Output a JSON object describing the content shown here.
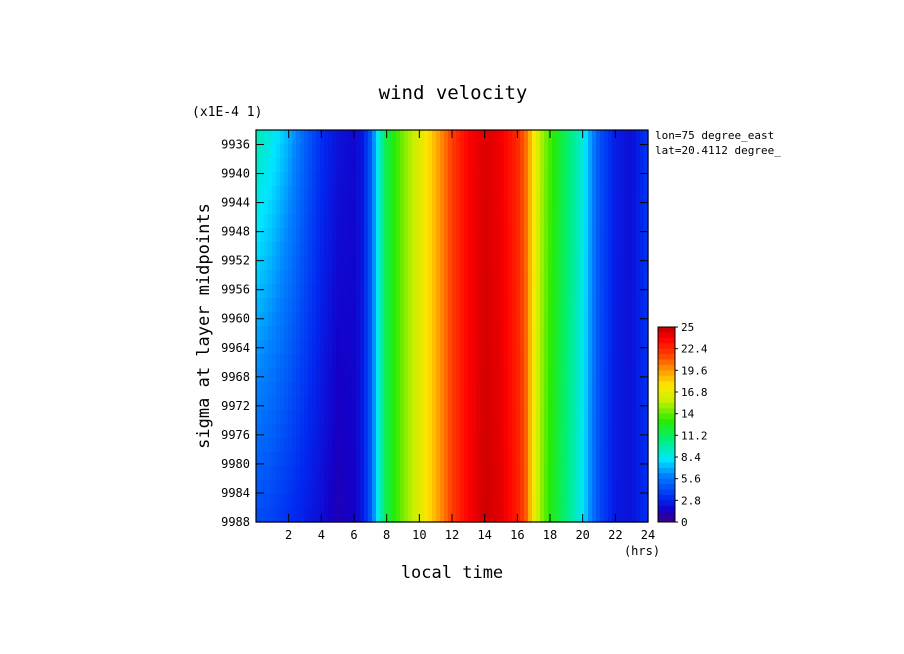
{
  "chart_data": {
    "type": "heatmap",
    "title": "wind velocity",
    "xlabel": "local time",
    "x_unit": "(hrs)",
    "ylabel": "sigma at layer midpoints",
    "y_scale_note": "(x1E-4 1)",
    "annotations": [
      "lon=75 degree_east",
      "lat=20.4112 degree_"
    ],
    "x_ticks": [
      2,
      4,
      6,
      8,
      10,
      12,
      14,
      16,
      18,
      20,
      22,
      24
    ],
    "xlim": [
      0,
      24
    ],
    "y_ticks": [
      9936,
      9940,
      9944,
      9948,
      9952,
      9956,
      9960,
      9964,
      9968,
      9972,
      9976,
      9980,
      9984,
      9988
    ],
    "ylim_top": 9934,
    "ylim_bottom": 9988,
    "colorbar_ticks": [
      "25",
      "22.4",
      "19.6",
      "16.8",
      "14",
      "11.2",
      "8.4",
      "5.6",
      "2.8",
      "0"
    ],
    "colorbar_range": [
      0,
      25
    ],
    "profile_x": [
      0,
      1,
      2,
      3,
      4,
      5,
      6,
      6.5,
      7,
      7.5,
      8,
      9,
      10,
      11,
      12,
      13,
      14,
      15,
      16,
      16.5,
      17,
      17.5,
      18,
      19,
      20,
      20.5,
      21,
      22,
      23,
      24
    ],
    "profile_top": [
      9.5,
      8.5,
      7.0,
      5.0,
      3.2,
      2.2,
      1.8,
      2.3,
      4.5,
      8.5,
      11.5,
      14.2,
      16.2,
      18.8,
      21.5,
      23.5,
      24.3,
      23.8,
      22.2,
      20.5,
      17.5,
      15.0,
      13.5,
      11.0,
      8.8,
      6.5,
      4.5,
      2.6,
      2.0,
      3.5
    ],
    "profile_bottom": [
      4.2,
      3.8,
      3.2,
      2.6,
      2.0,
      1.1,
      1.5,
      2.3,
      4.5,
      8.5,
      11.5,
      14.2,
      16.2,
      18.8,
      21.5,
      23.5,
      24.6,
      24.2,
      22.6,
      21.0,
      17.0,
      14.5,
      12.8,
      10.5,
      8.2,
      6.0,
      4.2,
      2.4,
      2.2,
      3.2
    ]
  }
}
